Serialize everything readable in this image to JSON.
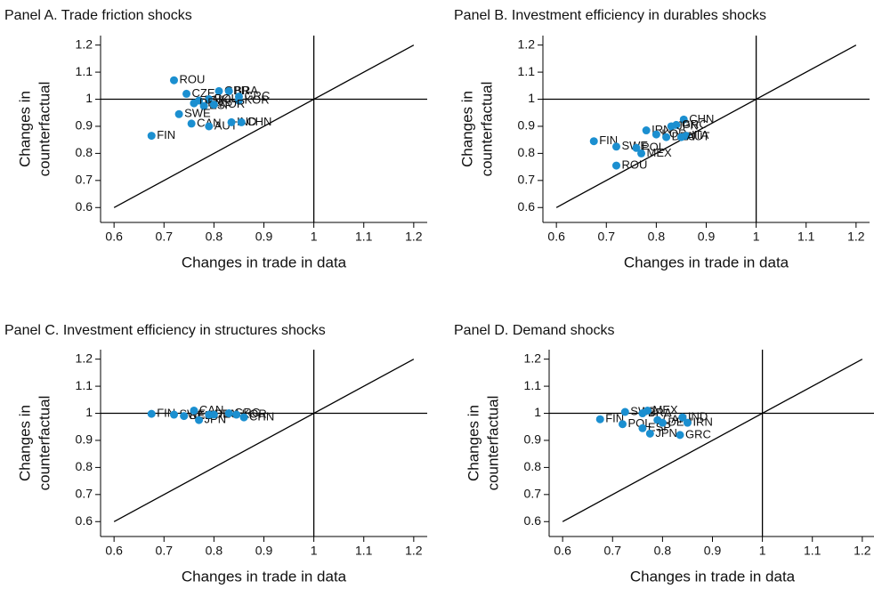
{
  "chart_data": [
    {
      "type": "scatter",
      "title": "Panel A. Trade friction shocks",
      "xlabel": "Changes in trade in data",
      "ylabel": [
        "Changes in",
        "counterfactual"
      ],
      "xlim": [
        0.573,
        1.227
      ],
      "ylim": [
        0.545,
        1.235
      ],
      "xticks": [
        0.6,
        0.7,
        0.8,
        0.9,
        1,
        1.1,
        1.2
      ],
      "yticks": [
        0.6,
        0.7,
        0.8,
        0.9,
        1,
        1.1,
        1.2
      ],
      "hline": 1,
      "vline": 1,
      "diagonal": true,
      "color": "#1b8fd0",
      "labels": [
        "ROU",
        "CZE",
        "GBR",
        "BRA",
        "GRC",
        "KOR",
        "DNK",
        "POL",
        "DEU",
        "ESP",
        "NOR",
        "SWE",
        "CAN",
        "AUT",
        "IND",
        "CHN",
        "FIN"
      ],
      "x": [
        0.72,
        0.745,
        0.81,
        0.83,
        0.85,
        0.85,
        0.77,
        0.79,
        0.76,
        0.78,
        0.8,
        0.73,
        0.755,
        0.79,
        0.835,
        0.855,
        0.675
      ],
      "y": [
        1.07,
        1.02,
        1.03,
        1.03,
        1.01,
        0.995,
        0.995,
        1.0,
        0.985,
        0.975,
        0.98,
        0.945,
        0.91,
        0.9,
        0.915,
        0.915,
        0.865
      ]
    },
    {
      "type": "scatter",
      "title": "Panel B. Investment efficiency in durables shocks",
      "xlabel": "Changes in trade in data",
      "ylabel": [
        "Changes in",
        "counterfactual"
      ],
      "xlim": [
        0.573,
        1.227
      ],
      "ylim": [
        0.545,
        1.235
      ],
      "xticks": [
        0.6,
        0.7,
        0.8,
        0.9,
        1,
        1.1,
        1.2
      ],
      "yticks": [
        0.6,
        0.7,
        0.8,
        0.9,
        1,
        1.1,
        1.2
      ],
      "hline": 1,
      "vline": 1,
      "diagonal": true,
      "color": "#1b8fd0",
      "labels": [
        "CHN",
        "GRC",
        "IRN",
        "JPN",
        "KOR",
        "DEU",
        "ITA",
        "AUT",
        "FIN",
        "SWE",
        "POL",
        "MEX",
        "ROU"
      ],
      "x": [
        0.855,
        0.84,
        0.78,
        0.83,
        0.8,
        0.82,
        0.86,
        0.85,
        0.675,
        0.72,
        0.76,
        0.77,
        0.72
      ],
      "y": [
        0.925,
        0.905,
        0.885,
        0.9,
        0.87,
        0.86,
        0.865,
        0.86,
        0.845,
        0.825,
        0.82,
        0.8,
        0.755
      ]
    },
    {
      "type": "scatter",
      "title": "Panel C. Investment efficiency in structures shocks",
      "xlabel": "Changes in trade in data",
      "ylabel": [
        "Changes in",
        "counterfactual"
      ],
      "xlim": [
        0.573,
        1.227
      ],
      "ylim": [
        0.545,
        1.235
      ],
      "xticks": [
        0.6,
        0.7,
        0.8,
        0.9,
        1,
        1.1,
        1.2
      ],
      "yticks": [
        0.6,
        0.7,
        0.8,
        0.9,
        1,
        1.1,
        1.2
      ],
      "hline": 1,
      "vline": 1,
      "diagonal": true,
      "color": "#1b8fd0",
      "labels": [
        "FIN",
        "SWE",
        "BEL",
        "CAN",
        "JPN",
        "DEU",
        "ITA",
        "GRC",
        "KOR",
        "CHN"
      ],
      "x": [
        0.675,
        0.72,
        0.74,
        0.76,
        0.77,
        0.79,
        0.8,
        0.83,
        0.845,
        0.86
      ],
      "y": [
        0.998,
        0.995,
        0.99,
        1.01,
        0.975,
        0.995,
        0.995,
        1.0,
        0.995,
        0.985
      ]
    },
    {
      "type": "scatter",
      "title": "Panel D. Demand shocks",
      "xlabel": "Changes in trade in data",
      "ylabel": [
        "Changes in",
        "counterfactual"
      ],
      "xlim": [
        0.573,
        1.227
      ],
      "ylim": [
        0.545,
        1.235
      ],
      "xticks": [
        0.6,
        0.7,
        0.8,
        0.9,
        1,
        1.1,
        1.2
      ],
      "yticks": [
        0.6,
        0.7,
        0.8,
        0.9,
        1,
        1.1,
        1.2
      ],
      "hline": 1,
      "vline": 1,
      "diagonal": true,
      "color": "#1b8fd0",
      "labels": [
        "FIN",
        "POL",
        "SWE",
        "BRA",
        "MEX",
        "CAN",
        "ESP",
        "JPN",
        "DEU",
        "IND",
        "IRN",
        "GRC"
      ],
      "x": [
        0.675,
        0.72,
        0.725,
        0.76,
        0.77,
        0.79,
        0.76,
        0.775,
        0.8,
        0.84,
        0.85,
        0.835
      ],
      "y": [
        0.978,
        0.96,
        1.005,
        1.0,
        1.01,
        0.975,
        0.945,
        0.925,
        0.965,
        0.985,
        0.965,
        0.92
      ]
    }
  ]
}
